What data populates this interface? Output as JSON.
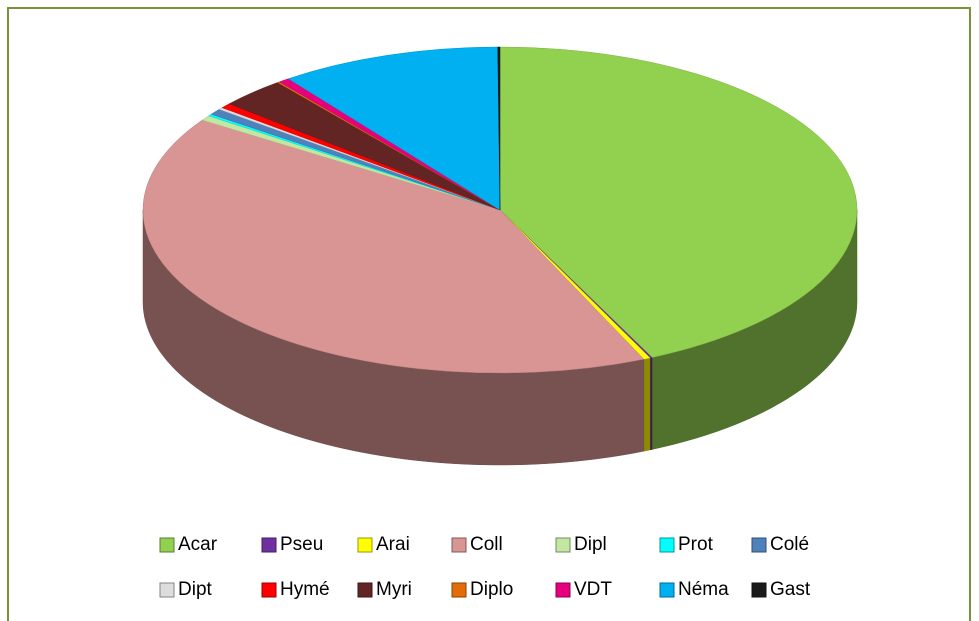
{
  "chart_data": {
    "type": "pie",
    "categories": [
      "Acar",
      "Pseu",
      "Arai",
      "Coll",
      "Dipl",
      "Prot",
      "Colé",
      "Dipt",
      "Hymé",
      "Myri",
      "Diplo",
      "VDT",
      "Néma",
      "Gast"
    ],
    "values": [
      43,
      0.1,
      0.3,
      40.9,
      0.5,
      0.2,
      0.6,
      0.2,
      0.5,
      3,
      0.1,
      0.5,
      10,
      0.1
    ],
    "colors": [
      "#92d050",
      "#7030a0",
      "#ffff00",
      "#d99594",
      "#c3e6a0",
      "#00ffff",
      "#4f81bd",
      "#dddddd",
      "#ff0000",
      "#632523",
      "#e36c09",
      "#e6007e",
      "#00b0f0",
      "#1a1a1a"
    ],
    "legend": "bottom"
  }
}
